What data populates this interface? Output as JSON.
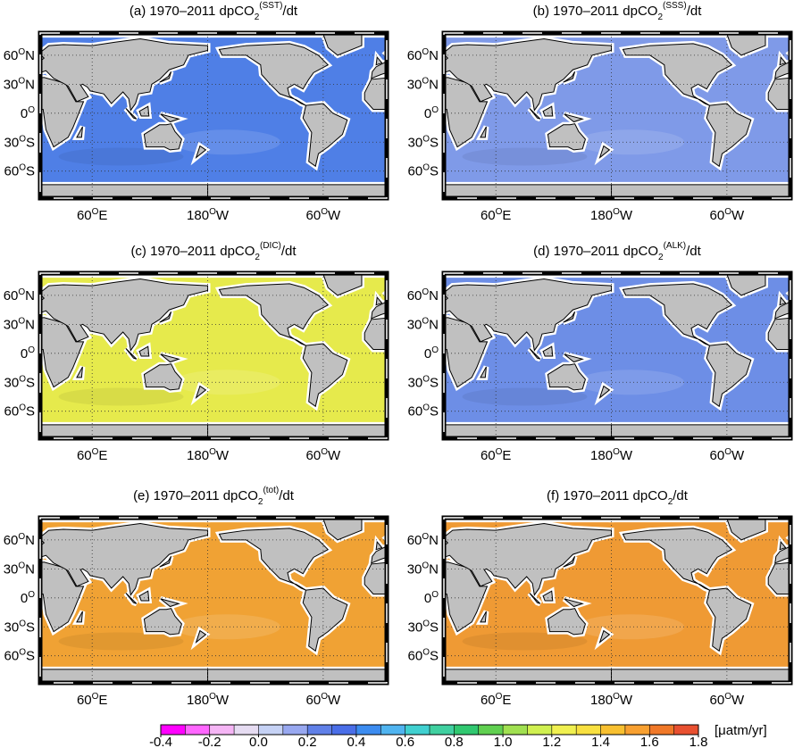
{
  "panels": [
    {
      "prefix": "(a) 1970–2011 dpCO",
      "sub": "2",
      "sup": "(SST)",
      "suffix": "/dt",
      "ocean": "#4f7fe6"
    },
    {
      "prefix": "(b) 1970–2011 dpCO",
      "sub": "2",
      "sup": "(SSS)",
      "suffix": "/dt",
      "ocean": "#7f9ae8"
    },
    {
      "prefix": "(c) 1970–2011 dpCO",
      "sub": "2",
      "sup": "(DIC)",
      "suffix": "/dt",
      "ocean": "#e6ea4c"
    },
    {
      "prefix": "(d) 1970–2011 dpCO",
      "sub": "2",
      "sup": "(ALK)",
      "suffix": "/dt",
      "ocean": "#6d8ee6"
    },
    {
      "prefix": "(e) 1970–2011 dpCO",
      "sub": "2",
      "sup": "(tot)",
      "suffix": "/dt",
      "ocean": "#f0a234"
    },
    {
      "prefix": "(f) 1970–2011 dpCO",
      "sub": "2",
      "suffix": "/dt",
      "ocean": "#ef9a34"
    }
  ],
  "lat_labels": [
    {
      "deg": "60",
      "mark": "O",
      "hemi": "N"
    },
    {
      "deg": "30",
      "mark": "O",
      "hemi": "N"
    },
    {
      "deg": "0",
      "mark": "O"
    },
    {
      "deg": "30",
      "mark": "O",
      "hemi": "S"
    },
    {
      "deg": "60",
      "mark": "O",
      "hemi": "S"
    }
  ],
  "lon_labels": [
    {
      "deg": "60",
      "mark": "O",
      "hemi": "E"
    },
    {
      "deg": "180",
      "mark": "O",
      "hemi": "W"
    },
    {
      "deg": "60",
      "mark": "O",
      "hemi": "W"
    }
  ],
  "colorbar": {
    "lim": [
      -0.4,
      1.8
    ],
    "ticks": [
      -0.4,
      -0.2,
      {
        "value": 0,
        "label": "0.0"
      },
      0.2,
      0.4,
      0.6,
      0.8,
      {
        "value": 1,
        "label": "1.0"
      },
      1.2,
      1.4,
      1.6,
      1.8
    ],
    "colors": [
      "#ff00ff",
      "#ff66ff",
      "#f5b5f5",
      "#e6dcf2",
      "#c6d2f5",
      "#98a8f0",
      "#6080e8",
      "#4a6ee8",
      "#3c8cf0",
      "#50b4f0",
      "#40d0d0",
      "#40d0a0",
      "#30c870",
      "#60d050",
      "#a0e050",
      "#d0f050",
      "#f0f050",
      "#f8e040",
      "#f8c030",
      "#f8a030",
      "#f07828",
      "#e85030"
    ],
    "unit": "[μatm/yr]"
  }
}
